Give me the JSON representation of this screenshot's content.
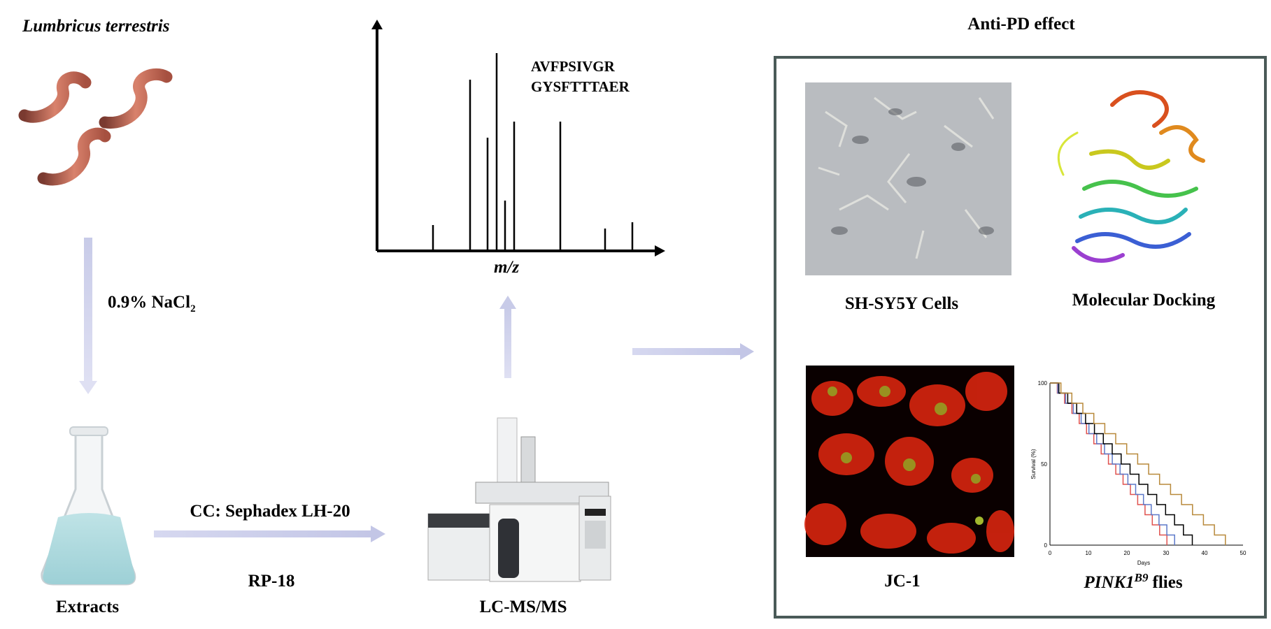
{
  "source": {
    "title": "Lumbricus terrestris",
    "extraction": "0.9% NaCl",
    "extraction_sub": "2",
    "product": "Extracts"
  },
  "separation": {
    "method_top": "CC: Sephadex LH-20",
    "method_bottom": "RP-18"
  },
  "instrument": {
    "label": "LC-MS/MS"
  },
  "spectrum": {
    "x_axis_label": "m/z",
    "peptides": [
      "AVFPSIVGR",
      "GYSFTTTAER"
    ]
  },
  "effects": {
    "title": "Anti-PD effect",
    "panels": [
      {
        "label": "SH-SY5Y Cells"
      },
      {
        "label": "Molecular Docking"
      },
      {
        "label": "JC-1"
      },
      {
        "label": "PINK1",
        "label_sup": "B9",
        "label_suffix": "flies"
      }
    ]
  },
  "survival_plot": {
    "y_axis_label": "Survival (%)",
    "x_axis_label": "Days",
    "yticks": [
      "100",
      "50",
      "0"
    ],
    "xticks": [
      "0",
      "10",
      "20",
      "30",
      "40",
      "50"
    ]
  }
}
